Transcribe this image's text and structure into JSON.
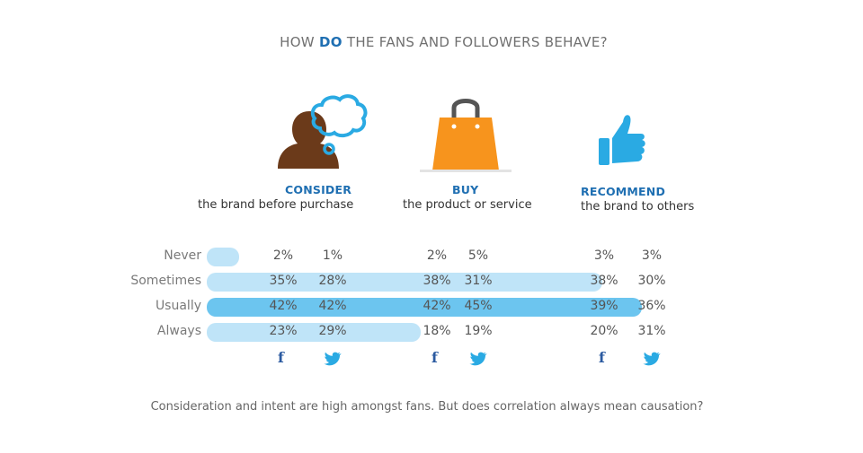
{
  "title": {
    "prefix": "HOW ",
    "highlight": "DO",
    "suffix": " THE FANS AND FOLLOWERS BEHAVE?"
  },
  "categories": [
    {
      "head": "CONSIDER",
      "sub": "the brand before purchase",
      "icon": "thinking-person-icon"
    },
    {
      "head": "BUY",
      "sub": "the product or service",
      "icon": "shopping-bag-icon"
    },
    {
      "head": "RECOMMEND",
      "sub": "the brand to others",
      "icon": "thumbs-up-icon"
    }
  ],
  "network_icons": [
    "facebook-icon",
    "twitter-icon"
  ],
  "colors": {
    "accent": "#1f6fb2",
    "bar_light": "#bfe4f8",
    "bar_dark": "#6cc5ef",
    "bag": "#f7941d",
    "person": "#6b3a1a",
    "thumb": "#2aaae3"
  },
  "chart_data": {
    "type": "table",
    "title": "HOW DO THE FANS AND FOLLOWERS BEHAVE?",
    "rows": [
      "Never",
      "Sometimes",
      "Usually",
      "Always"
    ],
    "columns": [
      "CONSIDER",
      "BUY",
      "RECOMMEND"
    ],
    "networks": [
      "Facebook",
      "Twitter"
    ],
    "series": [
      {
        "name": "Never",
        "values": [
          [
            "2%",
            "1%"
          ],
          [
            "2%",
            "5%"
          ],
          [
            "3%",
            "3%"
          ]
        ]
      },
      {
        "name": "Sometimes",
        "values": [
          [
            "35%",
            "28%"
          ],
          [
            "38%",
            "31%"
          ],
          [
            "38%",
            "30%"
          ]
        ]
      },
      {
        "name": "Usually",
        "values": [
          [
            "42%",
            "42%"
          ],
          [
            "42%",
            "45%"
          ],
          [
            "39%",
            "36%"
          ]
        ]
      },
      {
        "name": "Always",
        "values": [
          [
            "23%",
            "29%"
          ],
          [
            "18%",
            "19%"
          ],
          [
            "20%",
            "31%"
          ]
        ]
      }
    ],
    "bar_extent_percent": [
      2,
      38,
      42,
      20
    ]
  },
  "caption": "Consideration and intent are high amongst fans. But does correlation always mean causation?"
}
